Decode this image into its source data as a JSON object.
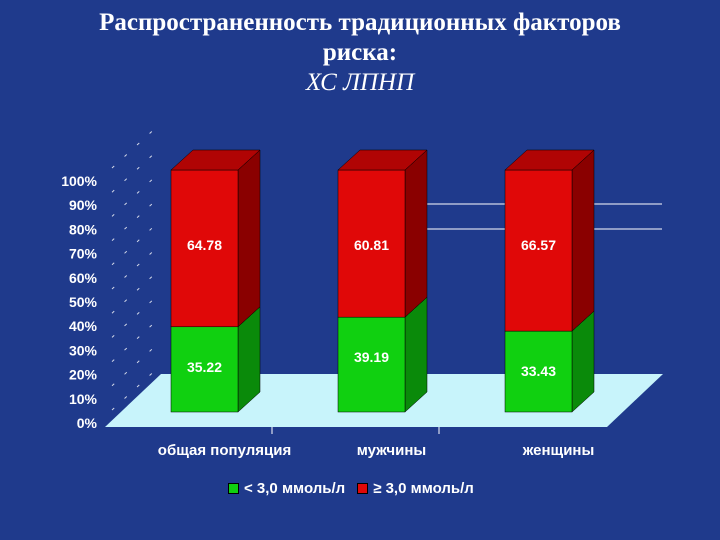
{
  "title": {
    "line1": "Распространенность традиционных факторов",
    "line2": "риска:",
    "line3": "ХС ЛПНП"
  },
  "colors": {
    "background": "#1f3a8c",
    "floor": "#c8f4fb",
    "green_front": "#10d010",
    "green_side": "#0a8a0a",
    "red_front": "#e00808",
    "red_side": "#8a0000",
    "red_top": "#b00404",
    "label_text": "#ffffff"
  },
  "chart_data": {
    "type": "bar",
    "stacked": true,
    "percent_axis": true,
    "categories": [
      "общая популяция",
      "мужчины",
      "женщины"
    ],
    "series": [
      {
        "name": "< 3,0 ммоль/л",
        "values": [
          35.22,
          39.19,
          33.43
        ],
        "color": "#10d010"
      },
      {
        "name": "≥ 3,0 ммоль/л",
        "values": [
          64.78,
          60.81,
          66.57
        ],
        "color": "#e00808"
      }
    ],
    "data_labels": [
      [
        "35.22",
        "39.19",
        "33.43"
      ],
      [
        "64.78",
        "60.81",
        "66.57"
      ]
    ],
    "yticks": [
      "0%",
      "10%",
      "20%",
      "30%",
      "40%",
      "50%",
      "60%",
      "70%",
      "80%",
      "90%",
      "100%"
    ],
    "ylim": [
      0,
      100
    ],
    "legend_position": "bottom"
  }
}
